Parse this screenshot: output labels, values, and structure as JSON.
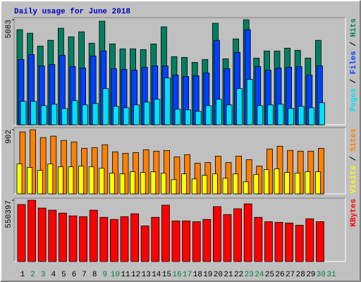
{
  "chart_data": [
    {
      "type": "bar",
      "title": "Daily usage for June 2018",
      "ylim": [
        0,
        5083
      ],
      "yticks": [
        5083
      ],
      "grid": false,
      "legend_separator": " / ",
      "legend_order": [
        2,
        1,
        0
      ],
      "series": [
        {
          "name": "Hits",
          "color": "#008060",
          "values": [
            4602,
            4430,
            3812,
            4087,
            4671,
            4259,
            4499,
            3949,
            5014,
            3915,
            3675,
            3675,
            3640,
            3915,
            4739,
            3297,
            3262,
            3022,
            3160,
            4911,
            3194,
            4155,
            5083,
            3228,
            3572,
            3572,
            3709,
            3606,
            3228,
            4087,
            0
          ]
        },
        {
          "name": "Files",
          "color": "#0040ff",
          "values": [
            3159,
            3400,
            2850,
            2919,
            3365,
            2816,
            2747,
            3331,
            3571,
            2713,
            2679,
            2644,
            2782,
            2850,
            2850,
            2404,
            2335,
            2369,
            2507,
            4086,
            2713,
            3503,
            4602,
            2816,
            2644,
            2747,
            2782,
            2816,
            2404,
            2850,
            0
          ]
        },
        {
          "name": "Pages",
          "color": "#00e0ff",
          "values": [
            1133,
            1133,
            927,
            996,
            790,
            1168,
            962,
            1030,
            1751,
            893,
            824,
            962,
            1099,
            1236,
            2266,
            756,
            721,
            652,
            927,
            1236,
            962,
            1751,
            2198,
            927,
            962,
            996,
            790,
            893,
            824,
            1065,
            0
          ]
        }
      ]
    },
    {
      "type": "bar",
      "ylim": [
        0,
        902
      ],
      "yticks": [
        902
      ],
      "grid": false,
      "legend_separator": " / ",
      "legend_order": [
        1,
        0
      ],
      "series": [
        {
          "name": "Sites",
          "color": "#ff8000",
          "values": [
            872,
            902,
            792,
            812,
            752,
            731,
            641,
            651,
            691,
            591,
            571,
            581,
            621,
            601,
            611,
            521,
            551,
            431,
            441,
            531,
            441,
            531,
            481,
            391,
            631,
            671,
            611,
            601,
            601,
            641,
            0
          ]
        },
        {
          "name": "Visits",
          "color": "#ffff00",
          "values": [
            421,
            371,
            331,
            421,
            381,
            381,
            391,
            381,
            361,
            291,
            281,
            311,
            301,
            311,
            291,
            200,
            281,
            210,
            261,
            281,
            220,
            281,
            170,
            271,
            341,
            351,
            301,
            291,
            311,
            311,
            0
          ]
        }
      ]
    },
    {
      "type": "bar",
      "ylim": [
        0,
        550397
      ],
      "yticks": [
        550397
      ],
      "grid": false,
      "categories": [
        1,
        2,
        3,
        4,
        5,
        6,
        7,
        8,
        9,
        10,
        11,
        12,
        13,
        14,
        15,
        16,
        17,
        18,
        19,
        20,
        21,
        22,
        23,
        24,
        25,
        26,
        27,
        28,
        29,
        30,
        31
      ],
      "category_colors": [
        "#000000",
        "#008040",
        "#008040",
        "#000000",
        "#000000",
        "#000000",
        "#000000",
        "#000000",
        "#008040",
        "#008040",
        "#000000",
        "#000000",
        "#000000",
        "#000000",
        "#000000",
        "#008040",
        "#008040",
        "#000000",
        "#000000",
        "#000000",
        "#000000",
        "#000000",
        "#008040",
        "#008040",
        "#000000",
        "#000000",
        "#000000",
        "#000000",
        "#000000",
        "#008040",
        "#008040"
      ],
      "series": [
        {
          "name": "KBytes",
          "color": "#ff0000",
          "values": [
            512000,
            550397,
            480000,
            461000,
            435000,
            410000,
            403000,
            461000,
            397000,
            378000,
            403000,
            429000,
            320000,
            397000,
            506000,
            365000,
            365000,
            358000,
            378000,
            493000,
            422000,
            474000,
            518000,
            397000,
            358000,
            352000,
            346000,
            326000,
            384000,
            358000,
            0
          ]
        }
      ]
    }
  ]
}
